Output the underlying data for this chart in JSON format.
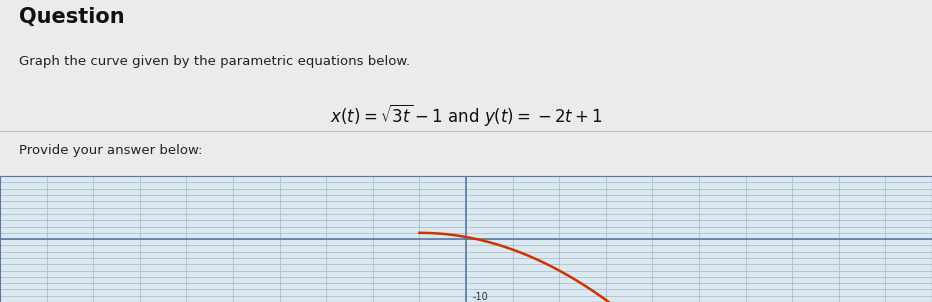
{
  "title": "Question",
  "subtitle": "Graph the curve given by the parametric equations below.",
  "provide_text": "Provide your answer below:",
  "bg_color": "#ebebeb",
  "panel_bg": "#ffffff",
  "mid_bg": "#f5f5f5",
  "graph_bg": "#dce8f0",
  "grid_color": "#a0b8cc",
  "axis_color": "#5878a0",
  "curve_color": "#cc3300",
  "t_min": 0,
  "t_max": 50,
  "x_min": -10,
  "x_max": 10,
  "y_min": -10,
  "y_max": 10,
  "y_label_val": -10,
  "figsize": [
    9.32,
    3.02
  ],
  "dpi": 100
}
